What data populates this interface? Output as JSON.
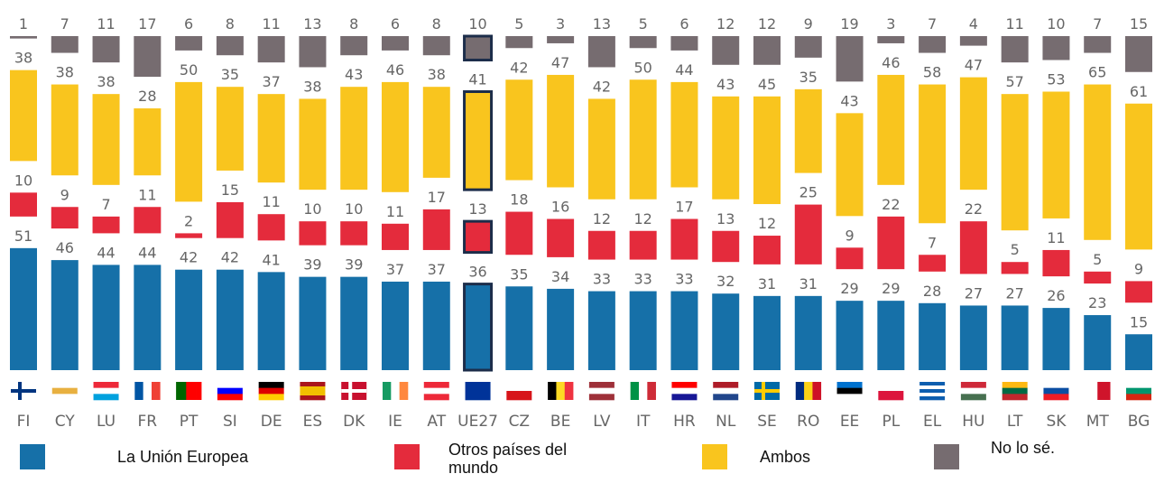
{
  "chart_data": {
    "type": "stacked_bar",
    "categories": [
      "FI",
      "CY",
      "LU",
      "FR",
      "PT",
      "SI",
      "DE",
      "ES",
      "DK",
      "IE",
      "AT",
      "UE27",
      "CZ",
      "BE",
      "LV",
      "IT",
      "HR",
      "NL",
      "SE",
      "RO",
      "EE",
      "PL",
      "EL",
      "HU",
      "LT",
      "SK",
      "MT",
      "BG"
    ],
    "highlight": "UE27",
    "series": [
      {
        "name": "La Unión Europea",
        "color": "#1670a8",
        "values": [
          51,
          46,
          44,
          44,
          42,
          42,
          41,
          39,
          39,
          37,
          37,
          36,
          35,
          34,
          33,
          33,
          33,
          32,
          31,
          31,
          29,
          29,
          28,
          27,
          27,
          26,
          23,
          15
        ]
      },
      {
        "name": "Otros países del mundo",
        "color": "#e42b3c",
        "values": [
          10,
          9,
          7,
          11,
          2,
          15,
          11,
          10,
          10,
          11,
          17,
          13,
          18,
          16,
          12,
          12,
          17,
          13,
          12,
          25,
          9,
          22,
          7,
          22,
          5,
          11,
          5,
          9
        ]
      },
      {
        "name": "Ambos",
        "color": "#f9c51e",
        "values": [
          38,
          38,
          38,
          28,
          50,
          35,
          37,
          38,
          43,
          46,
          38,
          41,
          42,
          47,
          42,
          50,
          44,
          43,
          45,
          35,
          43,
          46,
          58,
          47,
          57,
          53,
          65,
          61
        ]
      },
      {
        "name": "No lo sé.",
        "color": "#766c70",
        "values": [
          1,
          7,
          11,
          17,
          6,
          8,
          11,
          13,
          8,
          6,
          8,
          10,
          5,
          3,
          13,
          5,
          6,
          12,
          12,
          9,
          19,
          3,
          7,
          4,
          11,
          10,
          7,
          15
        ]
      }
    ]
  }
}
